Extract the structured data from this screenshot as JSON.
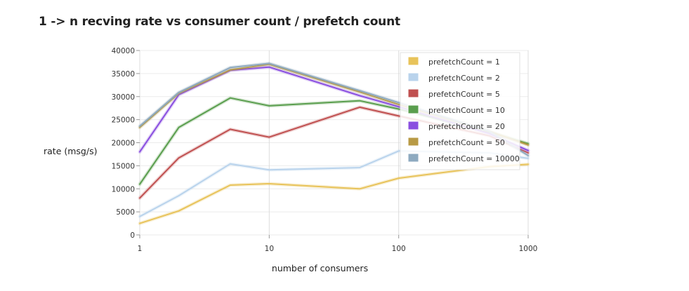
{
  "title": "1 -> n recving rate vs consumer count / prefetch count",
  "chart_data": {
    "type": "line",
    "title": "1 -> n recving rate vs consumer count / prefetch count",
    "xlabel": "number of consumers",
    "ylabel": "rate (msg/s)",
    "xscale": "log",
    "xlim": [
      1,
      1000
    ],
    "ylim": [
      0,
      40000
    ],
    "grid": true,
    "legend_position": "top-right",
    "x_ticks": [
      "1",
      "10",
      "100",
      "1000"
    ],
    "y_ticks": [
      "0",
      "5000",
      "10000",
      "15000",
      "20000",
      "25000",
      "30000",
      "35000",
      "40000"
    ],
    "x": [
      1,
      2,
      5,
      10,
      50,
      100,
      500,
      1000
    ],
    "series": [
      {
        "name": "prefetchCount = 1",
        "color": "#e8c35a",
        "values": [
          2500,
          5200,
          10800,
          11100,
          10000,
          12300,
          14800,
          15300
        ]
      },
      {
        "name": "prefetchCount = 2",
        "color": "#b9d3ec",
        "values": [
          4000,
          8500,
          15400,
          14100,
          14600,
          18200,
          17800,
          16600
        ]
      },
      {
        "name": "prefetchCount = 5",
        "color": "#c05050",
        "values": [
          8000,
          16700,
          22900,
          21200,
          27700,
          25800,
          21500,
          17800
        ]
      },
      {
        "name": "prefetchCount = 10",
        "color": "#5a9e4e",
        "values": [
          11000,
          23300,
          29700,
          28000,
          29100,
          27300,
          22300,
          19800
        ]
      },
      {
        "name": "prefetchCount = 20",
        "color": "#8a4fe0",
        "values": [
          18000,
          30400,
          35700,
          36400,
          30200,
          27800,
          22000,
          18300
        ]
      },
      {
        "name": "prefetchCount = 50",
        "color": "#b89a45",
        "values": [
          23300,
          30700,
          35800,
          37000,
          31000,
          28300,
          22500,
          19500
        ]
      },
      {
        "name": "prefetchCount = 10000",
        "color": "#8eaac0",
        "values": [
          23600,
          30900,
          36300,
          37200,
          31300,
          28700,
          22500,
          17200
        ]
      }
    ]
  }
}
